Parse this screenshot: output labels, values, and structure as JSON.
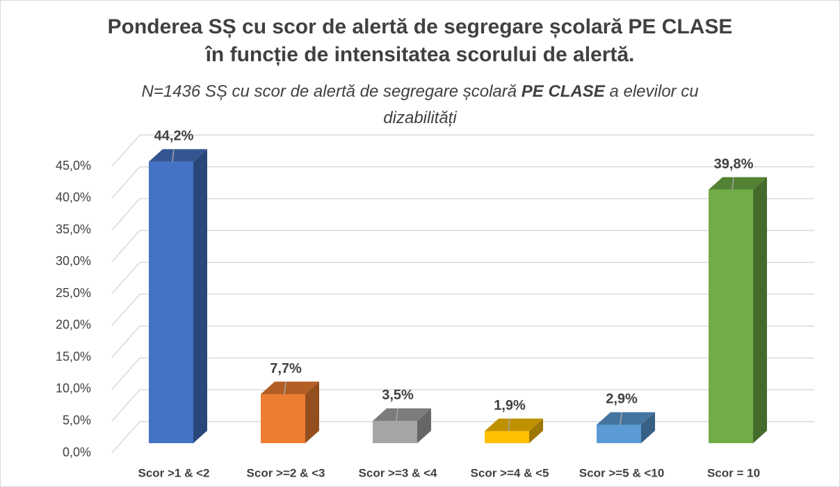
{
  "chart_data": {
    "type": "bar3d",
    "title": [
      "Ponderea SȘ cu scor de alertă de segregare școlară PE CLASE",
      "în funcție de intensitatea scorului de alertă."
    ],
    "subtitle": [
      "N=1436 SȘ cu scor de alertă de segregare școlară ",
      "PE CLASE",
      " a elevilor cu dizabilități"
    ],
    "categories": [
      "Scor >1 & <2",
      "Scor >=2 & <3",
      "Scor >=3 & <4",
      "Scor >=4 & <5",
      "Scor >=5 & <10",
      "Scor = 10"
    ],
    "values": [
      44.2,
      7.7,
      3.5,
      1.9,
      2.9,
      39.8
    ],
    "value_labels": [
      "44,2%",
      "7,7%",
      "3,5%",
      "1,9%",
      "2,9%",
      "39,8%"
    ],
    "colors": [
      "#4472c4",
      "#ed7d31",
      "#a5a5a5",
      "#ffc000",
      "#5b9bd5",
      "#70ad47"
    ],
    "ylim": [
      0,
      45
    ],
    "yticks": [
      {
        "value": 0,
        "label": "0,0%"
      },
      {
        "value": 5,
        "label": "5,0%"
      },
      {
        "value": 10,
        "label": "10,0%"
      },
      {
        "value": 15,
        "label": "15,0%"
      },
      {
        "value": 20,
        "label": "20,0%"
      },
      {
        "value": 25,
        "label": "25,0%"
      },
      {
        "value": 30,
        "label": "30,0%"
      },
      {
        "value": 35,
        "label": "35,0%"
      },
      {
        "value": 40,
        "label": "40,0%"
      },
      {
        "value": 45,
        "label": "45,0%"
      }
    ],
    "grid": true
  }
}
